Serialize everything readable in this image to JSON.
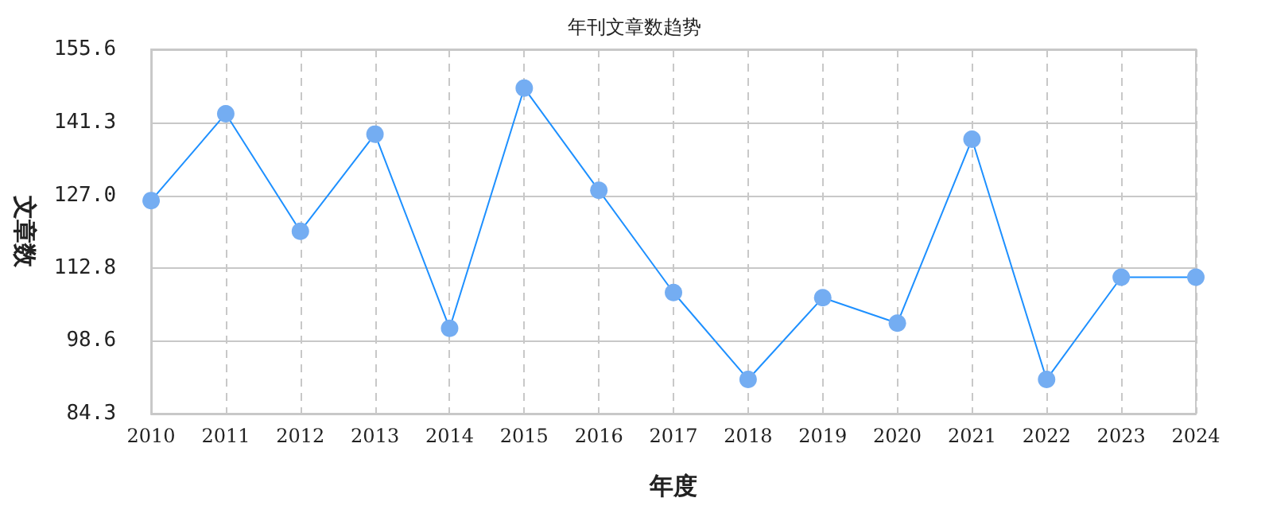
{
  "chart_data": {
    "type": "line",
    "title": "年刊文章数趋势",
    "xlabel": "年度",
    "ylabel": "文章数",
    "categories": [
      "2010",
      "2011",
      "2012",
      "2013",
      "2014",
      "2015",
      "2016",
      "2017",
      "2018",
      "2019",
      "2020",
      "2021",
      "2022",
      "2023",
      "2024"
    ],
    "series": [
      {
        "color": "#1e90ff",
        "values": [
          126,
          143,
          120,
          139,
          101,
          148,
          128,
          108,
          91,
          107,
          102,
          138,
          91,
          111,
          111
        ]
      }
    ],
    "ylim": [
      84.3,
      155.6
    ],
    "yticks": [
      {
        "value": 84.3,
        "label": "84.3"
      },
      {
        "value": 98.6,
        "label": "98.6"
      },
      {
        "value": 112.8,
        "label": "112.8"
      },
      {
        "value": 127.0,
        "label": "127.0"
      },
      {
        "value": 141.3,
        "label": "141.3"
      },
      {
        "value": 155.6,
        "label": "155.6"
      }
    ],
    "grid": true,
    "marker": "circle",
    "line_style": "solid"
  }
}
